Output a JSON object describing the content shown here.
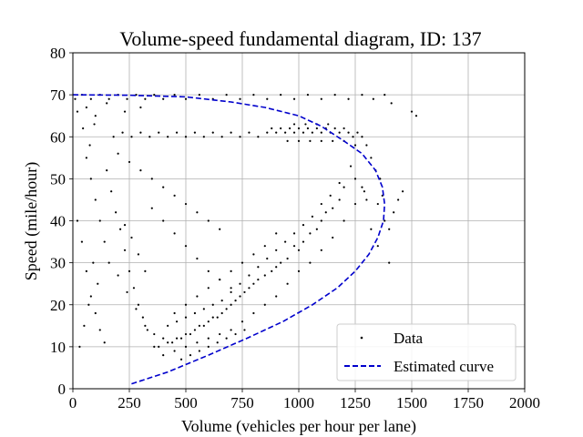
{
  "chart_data": {
    "type": "scatter",
    "title": "Volume-speed fundamental diagram, ID: 137",
    "xlabel": "Volume (vehicles per hour per lane)",
    "ylabel": "Speed (mile/hour)",
    "xlim": [
      0,
      2000
    ],
    "ylim": [
      0,
      80
    ],
    "xticks": [
      0,
      250,
      500,
      750,
      1000,
      1250,
      1500,
      1750,
      2000
    ],
    "yticks": [
      0,
      10,
      20,
      30,
      40,
      50,
      60,
      70,
      80
    ],
    "xtick_labels": [
      "0",
      "250",
      "500",
      "750",
      "1000",
      "1250",
      "1500",
      "1750",
      "2000"
    ],
    "ytick_labels": [
      "0",
      "10",
      "20",
      "30",
      "40",
      "50",
      "60",
      "70",
      "80"
    ],
    "grid": true,
    "legend_position": "lower-right",
    "legend": [
      "Data",
      "Estimated curve"
    ],
    "series": [
      {
        "name": "Data",
        "marker": "dot",
        "color": "#000000",
        "points": [
          [
            10,
            69
          ],
          [
            40,
            70
          ],
          [
            80,
            69
          ],
          [
            120,
            70
          ],
          [
            160,
            69
          ],
          [
            200,
            70
          ],
          [
            240,
            69
          ],
          [
            280,
            70
          ],
          [
            320,
            69
          ],
          [
            360,
            70
          ],
          [
            400,
            69
          ],
          [
            450,
            70
          ],
          [
            500,
            69
          ],
          [
            560,
            70
          ],
          [
            620,
            69
          ],
          [
            680,
            70
          ],
          [
            740,
            69
          ],
          [
            800,
            70
          ],
          [
            860,
            69
          ],
          [
            920,
            70
          ],
          [
            980,
            69
          ],
          [
            1040,
            70
          ],
          [
            1100,
            69
          ],
          [
            1160,
            70
          ],
          [
            1220,
            69
          ],
          [
            1280,
            70
          ],
          [
            1330,
            69
          ],
          [
            1380,
            70
          ],
          [
            1410,
            68
          ],
          [
            20,
            66
          ],
          [
            60,
            67
          ],
          [
            100,
            65
          ],
          [
            150,
            68
          ],
          [
            230,
            66
          ],
          [
            300,
            67
          ],
          [
            1500,
            66
          ],
          [
            1520,
            65
          ],
          [
            180,
            60
          ],
          [
            220,
            61
          ],
          [
            260,
            60
          ],
          [
            300,
            61
          ],
          [
            340,
            60
          ],
          [
            380,
            61
          ],
          [
            420,
            60
          ],
          [
            460,
            61
          ],
          [
            500,
            60
          ],
          [
            540,
            61
          ],
          [
            580,
            60
          ],
          [
            620,
            61
          ],
          [
            660,
            60
          ],
          [
            700,
            61
          ],
          [
            740,
            60
          ],
          [
            780,
            61
          ],
          [
            820,
            60
          ],
          [
            860,
            61
          ],
          [
            880,
            62
          ],
          [
            900,
            61
          ],
          [
            920,
            62
          ],
          [
            940,
            61
          ],
          [
            960,
            62
          ],
          [
            980,
            61
          ],
          [
            1000,
            62
          ],
          [
            1020,
            61
          ],
          [
            1040,
            62
          ],
          [
            1060,
            61
          ],
          [
            1080,
            62
          ],
          [
            1100,
            61
          ],
          [
            1120,
            62
          ],
          [
            1140,
            61
          ],
          [
            1160,
            62
          ],
          [
            1180,
            61
          ],
          [
            1200,
            62
          ],
          [
            1220,
            61
          ],
          [
            1240,
            60
          ],
          [
            1260,
            61
          ],
          [
            1280,
            60
          ],
          [
            950,
            59
          ],
          [
            1000,
            59
          ],
          [
            1050,
            59
          ],
          [
            1100,
            59
          ],
          [
            1150,
            59
          ],
          [
            1200,
            59
          ],
          [
            1250,
            58
          ],
          [
            980,
            63
          ],
          [
            1030,
            63
          ],
          [
            1080,
            63
          ],
          [
            1130,
            63
          ],
          [
            1300,
            58
          ],
          [
            1320,
            55
          ],
          [
            1340,
            52
          ],
          [
            1360,
            50
          ],
          [
            1300,
            45
          ],
          [
            1280,
            48
          ],
          [
            1250,
            50
          ],
          [
            1230,
            53
          ],
          [
            1350,
            44
          ],
          [
            1370,
            46
          ],
          [
            1200,
            48
          ],
          [
            1180,
            45
          ],
          [
            1150,
            43
          ],
          [
            1120,
            42
          ],
          [
            1100,
            40
          ],
          [
            1080,
            38
          ],
          [
            1050,
            37
          ],
          [
            1020,
            35
          ],
          [
            1000,
            33
          ],
          [
            980,
            34
          ],
          [
            950,
            31
          ],
          [
            920,
            30
          ],
          [
            900,
            29
          ],
          [
            880,
            28
          ],
          [
            850,
            27
          ],
          [
            820,
            26
          ],
          [
            800,
            25
          ],
          [
            780,
            24
          ],
          [
            760,
            23
          ],
          [
            740,
            22
          ],
          [
            720,
            21
          ],
          [
            700,
            20
          ],
          [
            680,
            19
          ],
          [
            660,
            18
          ],
          [
            640,
            17
          ],
          [
            620,
            17
          ],
          [
            600,
            16
          ],
          [
            580,
            15
          ],
          [
            560,
            15
          ],
          [
            540,
            14
          ],
          [
            520,
            13
          ],
          [
            500,
            13
          ],
          [
            480,
            12
          ],
          [
            460,
            12
          ],
          [
            440,
            11
          ],
          [
            420,
            11
          ],
          [
            400,
            12
          ],
          [
            380,
            10
          ],
          [
            360,
            10
          ],
          [
            400,
            8
          ],
          [
            450,
            9
          ],
          [
            500,
            10
          ],
          [
            550,
            11
          ],
          [
            600,
            12
          ],
          [
            650,
            13
          ],
          [
            700,
            14
          ],
          [
            750,
            16
          ],
          [
            800,
            18
          ],
          [
            850,
            20
          ],
          [
            900,
            22
          ],
          [
            950,
            25
          ],
          [
            1000,
            28
          ],
          [
            1050,
            30
          ],
          [
            1100,
            33
          ],
          [
            1150,
            36
          ],
          [
            1200,
            40
          ],
          [
            1250,
            44
          ],
          [
            1290,
            47
          ],
          [
            420,
            15
          ],
          [
            460,
            16
          ],
          [
            500,
            17
          ],
          [
            540,
            18
          ],
          [
            580,
            19
          ],
          [
            620,
            20
          ],
          [
            660,
            21
          ],
          [
            700,
            23
          ],
          [
            740,
            25
          ],
          [
            780,
            27
          ],
          [
            820,
            29
          ],
          [
            860,
            31
          ],
          [
            900,
            33
          ],
          [
            940,
            35
          ],
          [
            980,
            37
          ],
          [
            1020,
            39
          ],
          [
            1060,
            41
          ],
          [
            1100,
            44
          ],
          [
            1140,
            46
          ],
          [
            1180,
            49
          ],
          [
            450,
            18
          ],
          [
            500,
            20
          ],
          [
            550,
            22
          ],
          [
            600,
            24
          ],
          [
            650,
            26
          ],
          [
            700,
            28
          ],
          [
            750,
            30
          ],
          [
            800,
            32
          ],
          [
            850,
            34
          ],
          [
            900,
            37
          ],
          [
            480,
            7
          ],
          [
            520,
            8
          ],
          [
            560,
            9
          ],
          [
            600,
            10
          ],
          [
            640,
            11
          ],
          [
            680,
            12
          ],
          [
            720,
            13
          ],
          [
            760,
            14
          ],
          [
            60,
            55
          ],
          [
            80,
            50
          ],
          [
            100,
            45
          ],
          [
            120,
            40
          ],
          [
            140,
            35
          ],
          [
            90,
            30
          ],
          [
            110,
            25
          ],
          [
            70,
            20
          ],
          [
            50,
            15
          ],
          [
            30,
            10
          ],
          [
            150,
            52
          ],
          [
            170,
            47
          ],
          [
            190,
            42
          ],
          [
            210,
            38
          ],
          [
            230,
            33
          ],
          [
            250,
            28
          ],
          [
            270,
            24
          ],
          [
            290,
            20
          ],
          [
            310,
            17
          ],
          [
            330,
            14
          ],
          [
            200,
            56
          ],
          [
            250,
            54
          ],
          [
            300,
            52
          ],
          [
            350,
            50
          ],
          [
            400,
            48
          ],
          [
            450,
            46
          ],
          [
            500,
            44
          ],
          [
            550,
            42
          ],
          [
            600,
            40
          ],
          [
            650,
            38
          ],
          [
            350,
            43
          ],
          [
            400,
            40
          ],
          [
            450,
            37
          ],
          [
            500,
            34
          ],
          [
            550,
            31
          ],
          [
            600,
            28
          ],
          [
            650,
            26
          ],
          [
            700,
            24
          ],
          [
            160,
            30
          ],
          [
            200,
            27
          ],
          [
            240,
            23
          ],
          [
            280,
            19
          ],
          [
            320,
            15
          ],
          [
            360,
            13
          ],
          [
            230,
            39
          ],
          [
            260,
            36
          ],
          [
            290,
            32
          ],
          [
            320,
            28
          ],
          [
            1380,
            40
          ],
          [
            1400,
            38
          ],
          [
            1420,
            42
          ],
          [
            1440,
            45
          ],
          [
            1460,
            47
          ],
          [
            1400,
            30
          ],
          [
            1350,
            34
          ],
          [
            1320,
            38
          ],
          [
            20,
            40
          ],
          [
            40,
            35
          ],
          [
            60,
            28
          ],
          [
            80,
            22
          ],
          [
            100,
            18
          ],
          [
            120,
            14
          ],
          [
            140,
            11
          ],
          [
            45,
            62
          ],
          [
            75,
            58
          ],
          [
            95,
            63
          ]
        ]
      },
      {
        "name": "Estimated curve",
        "style": "dashed",
        "color": "#0000cc",
        "points": [
          [
            0,
            70
          ],
          [
            250,
            69.9
          ],
          [
            500,
            69.5
          ],
          [
            700,
            68.3
          ],
          [
            850,
            67
          ],
          [
            1000,
            65
          ],
          [
            1100,
            62.5
          ],
          [
            1200,
            59
          ],
          [
            1280,
            56
          ],
          [
            1340,
            52
          ],
          [
            1370,
            48
          ],
          [
            1380,
            44
          ],
          [
            1375,
            40
          ],
          [
            1350,
            36
          ],
          [
            1310,
            32
          ],
          [
            1250,
            28
          ],
          [
            1170,
            24
          ],
          [
            1060,
            20
          ],
          [
            930,
            16
          ],
          [
            770,
            12
          ],
          [
            600,
            8
          ],
          [
            420,
            4
          ],
          [
            250,
            1
          ]
        ]
      }
    ]
  }
}
